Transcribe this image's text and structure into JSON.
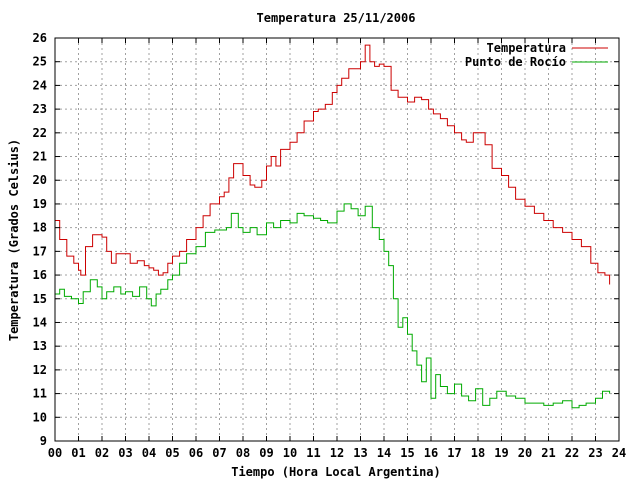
{
  "chart_data": {
    "type": "line",
    "title": "Temperatura 25/11/2006",
    "xlabel": "Tiempo (Hora Local Argentina)",
    "ylabel": "Temperatura (Grados Celsius)",
    "xlim": [
      0,
      24
    ],
    "ylim": [
      9,
      26
    ],
    "x_ticks": [
      0,
      1,
      2,
      3,
      4,
      5,
      6,
      7,
      8,
      9,
      10,
      11,
      12,
      13,
      14,
      15,
      16,
      17,
      18,
      19,
      20,
      21,
      22,
      23,
      24
    ],
    "x_tick_labels": [
      "00",
      "01",
      "02",
      "03",
      "04",
      "05",
      "06",
      "07",
      "08",
      "09",
      "10",
      "11",
      "12",
      "13",
      "14",
      "15",
      "16",
      "17",
      "18",
      "19",
      "20",
      "21",
      "22",
      "23",
      "24"
    ],
    "y_ticks": [
      9,
      10,
      11,
      12,
      13,
      14,
      15,
      16,
      17,
      18,
      19,
      20,
      21,
      22,
      23,
      24,
      25,
      26
    ],
    "grid": true,
    "legend_position": "top-right",
    "colors": {
      "temperatura": "#cc0000",
      "punto_rocio": "#00aa00",
      "grid": "#a0a0a0"
    },
    "series": [
      {
        "name": "Temperatura",
        "color": "#cc0000",
        "x": [
          0,
          0.2,
          0.5,
          0.8,
          1.0,
          1.1,
          1.3,
          1.6,
          2.0,
          2.2,
          2.4,
          2.6,
          2.9,
          3.2,
          3.5,
          3.8,
          4.0,
          4.2,
          4.4,
          4.6,
          4.8,
          5.0,
          5.3,
          5.6,
          6.0,
          6.3,
          6.6,
          7.0,
          7.2,
          7.4,
          7.6,
          8.0,
          8.3,
          8.5,
          8.8,
          9.0,
          9.2,
          9.4,
          9.6,
          10.0,
          10.3,
          10.6,
          11.0,
          11.2,
          11.5,
          11.8,
          12.0,
          12.2,
          12.5,
          12.8,
          13.0,
          13.2,
          13.4,
          13.6,
          13.8,
          14.0,
          14.3,
          14.6,
          15.0,
          15.3,
          15.6,
          15.9,
          16.1,
          16.4,
          16.7,
          17.0,
          17.3,
          17.5,
          17.8,
          18.0,
          18.3,
          18.6,
          19.0,
          19.3,
          19.6,
          20.0,
          20.4,
          20.8,
          21.2,
          21.6,
          22.0,
          22.4,
          22.8,
          23.1,
          23.4,
          23.6
        ],
        "y": [
          18.3,
          17.5,
          16.8,
          16.5,
          16.2,
          16.0,
          17.2,
          17.7,
          17.6,
          17.0,
          16.5,
          16.9,
          16.9,
          16.5,
          16.6,
          16.4,
          16.3,
          16.2,
          16.0,
          16.1,
          16.5,
          16.8,
          17.0,
          17.5,
          18.0,
          18.5,
          19.0,
          19.3,
          19.5,
          20.1,
          20.7,
          20.2,
          19.8,
          19.7,
          20.0,
          20.6,
          21.0,
          20.6,
          21.3,
          21.6,
          22.0,
          22.5,
          22.9,
          23.0,
          23.2,
          23.7,
          24.0,
          24.3,
          24.7,
          24.7,
          25.0,
          25.7,
          25.0,
          24.8,
          24.9,
          24.8,
          23.8,
          23.5,
          23.3,
          23.5,
          23.4,
          23.0,
          22.8,
          22.6,
          22.3,
          22.0,
          21.7,
          21.6,
          22.0,
          22.0,
          21.5,
          20.5,
          20.2,
          19.7,
          19.2,
          18.9,
          18.6,
          18.3,
          18.0,
          17.8,
          17.5,
          17.2,
          16.5,
          16.1,
          16.0,
          15.6
        ]
      },
      {
        "name": "Punto de Rocío",
        "color": "#00aa00",
        "x": [
          0,
          0.2,
          0.4,
          0.7,
          1.0,
          1.2,
          1.5,
          1.8,
          2.0,
          2.2,
          2.5,
          2.8,
          3.0,
          3.3,
          3.6,
          3.9,
          4.1,
          4.3,
          4.5,
          4.8,
          5.0,
          5.3,
          5.6,
          6.0,
          6.4,
          6.8,
          7.0,
          7.3,
          7.5,
          7.8,
          8.0,
          8.3,
          8.6,
          9.0,
          9.3,
          9.6,
          10.0,
          10.3,
          10.6,
          11.0,
          11.3,
          11.6,
          12.0,
          12.3,
          12.6,
          12.9,
          13.2,
          13.5,
          13.8,
          14.0,
          14.2,
          14.4,
          14.6,
          14.8,
          15.0,
          15.2,
          15.4,
          15.6,
          15.8,
          16.0,
          16.2,
          16.4,
          16.7,
          17.0,
          17.3,
          17.6,
          17.9,
          18.2,
          18.5,
          18.8,
          19.2,
          19.6,
          20.0,
          20.4,
          20.8,
          21.2,
          21.6,
          22.0,
          22.3,
          22.6,
          23.0,
          23.3,
          23.6
        ],
        "y": [
          15.2,
          15.4,
          15.1,
          15.0,
          14.8,
          15.3,
          15.8,
          15.5,
          15.0,
          15.3,
          15.5,
          15.2,
          15.3,
          15.1,
          15.5,
          15.0,
          14.7,
          15.2,
          15.4,
          15.8,
          16.0,
          16.5,
          16.9,
          17.2,
          17.8,
          17.9,
          17.9,
          18.0,
          18.6,
          18.0,
          17.8,
          18.0,
          17.7,
          18.2,
          18.0,
          18.3,
          18.2,
          18.6,
          18.5,
          18.4,
          18.3,
          18.2,
          18.7,
          19.0,
          18.8,
          18.5,
          18.9,
          18.0,
          17.5,
          17.0,
          16.4,
          15.0,
          13.8,
          14.2,
          13.5,
          12.8,
          12.2,
          11.5,
          12.5,
          10.8,
          11.8,
          11.3,
          11.0,
          11.4,
          10.9,
          10.7,
          11.2,
          10.5,
          10.8,
          11.1,
          10.9,
          10.8,
          10.6,
          10.6,
          10.5,
          10.6,
          10.7,
          10.4,
          10.5,
          10.6,
          10.8,
          11.1,
          11.0
        ]
      }
    ]
  }
}
